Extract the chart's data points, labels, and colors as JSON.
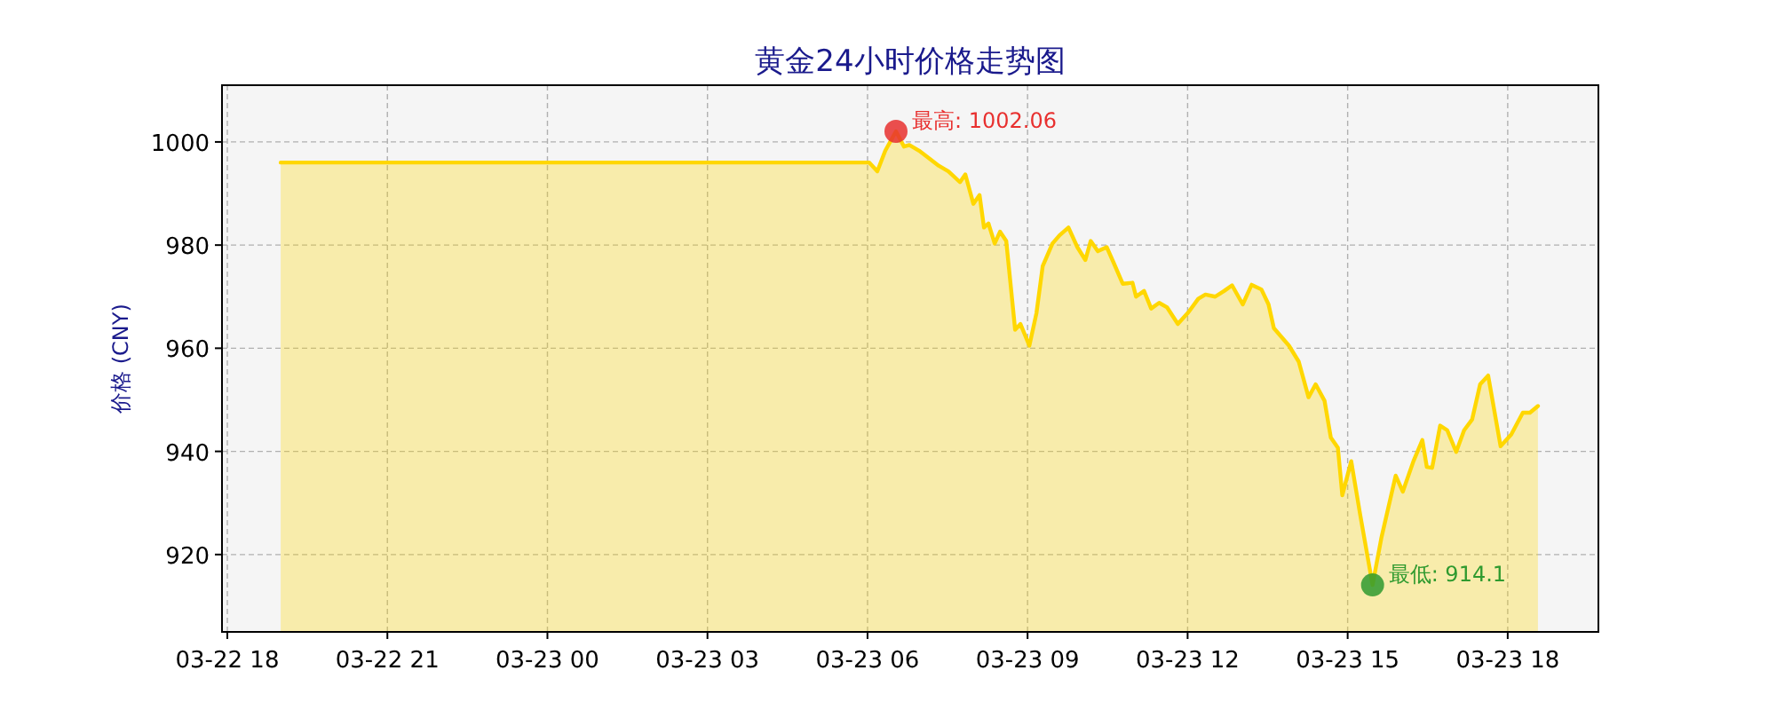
{
  "chart_data": {
    "type": "area",
    "title": "黄金24小时价格走势图",
    "ylabel": "价格 (CNY)",
    "series": [
      {
        "color": "#ffd700",
        "x": [
          "--03-22T19:00",
          "--03-23T06:02",
          "--03-23T06:11",
          "--03-23T06:20",
          "--03-23T06:32",
          "--03-23T06:41",
          "--03-23T06:47",
          "--03-23T06:58",
          "--03-23T07:11",
          "--03-23T07:20",
          "--03-23T07:31",
          "--03-23T07:44",
          "--03-23T07:50",
          "--03-23T07:59",
          "--03-23T08:06",
          "--03-23T08:11",
          "--03-23T08:16",
          "--03-23T08:23",
          "--03-23T08:29",
          "--03-23T08:36",
          "--03-23T08:46",
          "--03-23T08:52",
          "--03-23T09:02",
          "--03-23T09:10",
          "--03-23T09:17",
          "--03-23T09:28",
          "--03-23T09:36",
          "--03-23T09:46",
          "--03-23T09:56",
          "--03-23T10:05",
          "--03-23T10:11",
          "--03-23T10:19",
          "--03-23T10:29",
          "--03-23T10:37",
          "--03-23T10:47",
          "--03-23T10:58",
          "--03-23T11:02",
          "--03-23T11:11",
          "--03-23T11:19",
          "--03-23T11:28",
          "--03-23T11:37",
          "--03-23T11:49",
          "--03-23T12:01",
          "--03-23T12:12",
          "--03-23T12:20",
          "--03-23T12:31",
          "--03-23T12:41",
          "--03-23T12:50",
          "--03-23T13:02",
          "--03-23T13:12",
          "--03-23T13:23",
          "--03-23T13:31",
          "--03-23T13:37",
          "--03-23T13:54",
          "--03-23T14:05",
          "--03-23T14:16",
          "--03-23T14:24",
          "--03-23T14:34",
          "--03-23T14:41",
          "--03-23T14:49",
          "--03-23T14:54",
          "--03-23T15:04",
          "--03-23T15:14",
          "--03-23T15:28",
          "--03-23T15:38",
          "--03-23T15:54",
          "--03-23T16:02",
          "--03-23T16:14",
          "--03-23T16:24",
          "--03-23T16:29",
          "--03-23T16:35",
          "--03-23T16:44",
          "--03-23T16:52",
          "--03-23T17:02",
          "--03-23T17:11",
          "--03-23T17:20",
          "--03-23T17:29",
          "--03-23T17:38",
          "--03-23T17:52",
          "--03-23T18:04",
          "--03-23T18:17",
          "--03-23T18:25",
          "--03-23T18:34"
        ],
        "values": [
          996.0,
          996.0,
          994.3,
          998.3,
          1002.06,
          999.1,
          999.4,
          998.3,
          996.6,
          995.4,
          994.3,
          992.2,
          993.7,
          988.0,
          989.7,
          983.4,
          984.2,
          980.3,
          982.6,
          980.8,
          963.6,
          964.7,
          960.5,
          966.8,
          975.9,
          980.3,
          981.9,
          983.4,
          979.6,
          977.1,
          980.8,
          978.8,
          979.6,
          976.5,
          972.5,
          972.7,
          970.0,
          971.1,
          967.7,
          968.8,
          967.9,
          964.7,
          967.0,
          969.6,
          970.4,
          970.0,
          971.1,
          972.2,
          968.5,
          972.3,
          971.4,
          968.5,
          963.9,
          960.5,
          957.4,
          950.5,
          953.0,
          949.8,
          942.7,
          940.7,
          931.5,
          938.1,
          927.8,
          914.1,
          923.3,
          935.3,
          932.2,
          938.1,
          942.2,
          937.0,
          936.8,
          945.0,
          944.1,
          939.9,
          944.1,
          946.2,
          953.0,
          954.7,
          941.0,
          943.3,
          947.5,
          947.5,
          948.8
        ]
      }
    ],
    "annotations": [
      {
        "text": "最高: 1002.06",
        "x": "--03-23T06:32",
        "y": 1002.06
      },
      {
        "text": "最低: 914.1",
        "x": "--03-23T15:28",
        "y": 914.1
      }
    ],
    "xlim": [
      "--03-22T17:54",
      "--03-23T19:42"
    ],
    "xticks": [
      {
        "value": "--03-22T18:00",
        "label": "03-22 18"
      },
      {
        "value": "--03-22T21:00",
        "label": "03-22 21"
      },
      {
        "value": "--03-23T00:00",
        "label": "03-23 00"
      },
      {
        "value": "--03-23T03:00",
        "label": "03-23 03"
      },
      {
        "value": "--03-23T06:00",
        "label": "03-23 06"
      },
      {
        "value": "--03-23T09:00",
        "label": "03-23 09"
      },
      {
        "value": "--03-23T12:00",
        "label": "03-23 12"
      },
      {
        "value": "--03-23T15:00",
        "label": "03-23 15"
      },
      {
        "value": "--03-23T18:00",
        "label": "03-23 18"
      }
    ],
    "ylim": [
      905,
      1011
    ],
    "yticks": [
      920,
      940,
      960,
      980,
      1000
    ],
    "grid": true
  }
}
